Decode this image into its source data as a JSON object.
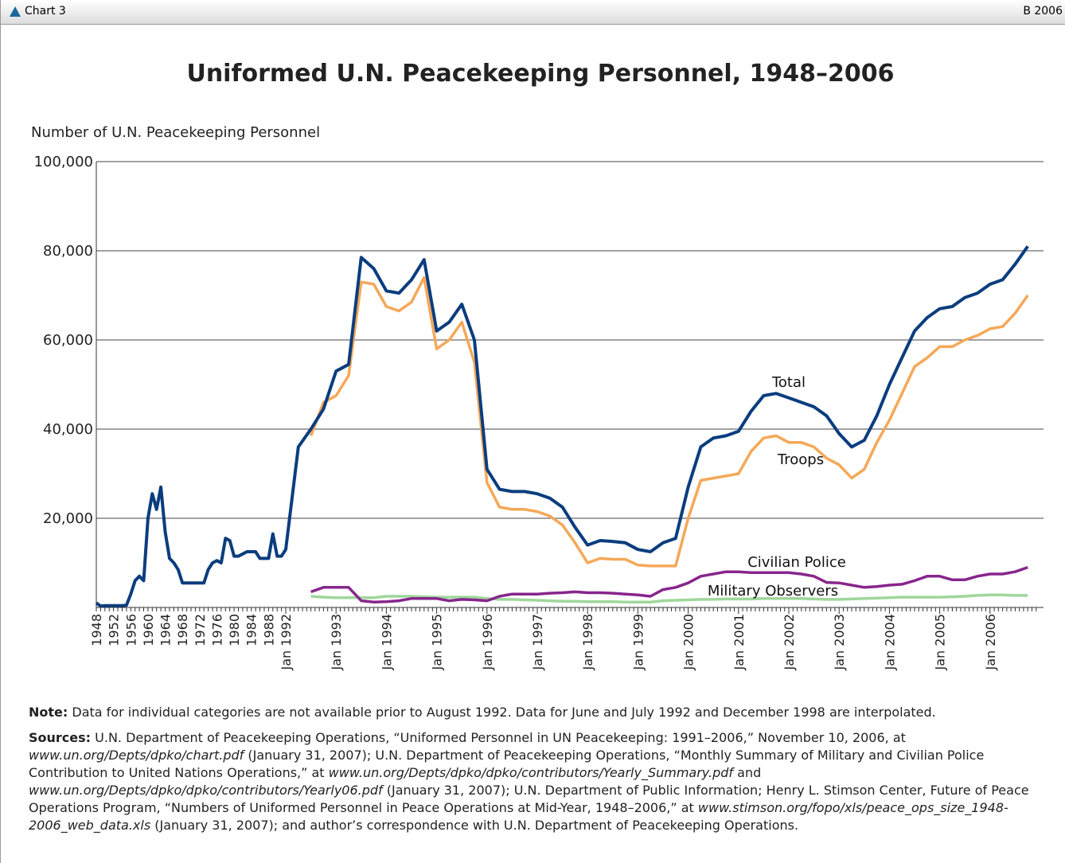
{
  "header": {
    "left": "Chart 3",
    "right": "B 2006"
  },
  "chart_data": {
    "type": "line",
    "title": "Uniformed U.N. Peacekeeping Personnel, 1948–2006",
    "y_label": "Number of U.N. Peacekeeping Personnel",
    "categories": [
      "1948",
      null,
      null,
      null,
      "1952",
      null,
      null,
      null,
      "1956",
      null,
      null,
      null,
      "1960",
      null,
      null,
      null,
      "1964",
      null,
      null,
      null,
      "1968",
      null,
      null,
      null,
      "1972",
      null,
      null,
      null,
      "1976",
      null,
      null,
      null,
      "1980",
      null,
      null,
      null,
      "1984",
      null,
      null,
      null,
      "1988",
      null,
      null,
      null,
      "Jan 1992",
      null,
      null,
      null,
      "Jan 1993",
      null,
      null,
      null,
      "Jan 1994",
      null,
      null,
      null,
      "Jan 1995",
      null,
      null,
      null,
      "Jan 1996",
      null,
      null,
      null,
      "Jan 1997",
      null,
      null,
      null,
      "Jan 1998",
      null,
      null,
      null,
      "Jan 1999",
      null,
      null,
      null,
      "Jan 2000",
      null,
      null,
      null,
      "Jan 2001",
      null,
      null,
      null,
      "Jan 2002",
      null,
      null,
      null,
      "Jan 2003",
      null,
      null,
      null,
      "Jan 2004",
      null,
      null,
      null,
      "Jan 2005",
      null,
      null,
      null,
      "Jan 2006",
      null,
      null,
      null
    ],
    "series": [
      {
        "name": "Total",
        "color": "#0b3d7e",
        "values": [
          1000,
          300,
          400,
          400,
          400,
          400,
          400,
          500,
          3000,
          6000,
          7000,
          6000,
          20000,
          25500,
          22000,
          27000,
          17000,
          11000,
          10000,
          8500,
          5500,
          5500,
          5500,
          5500,
          5500,
          5500,
          8500,
          10000,
          10500,
          10000,
          15500,
          15000,
          11500,
          11500,
          12000,
          12500,
          12500,
          12500,
          11000,
          11000,
          11000,
          16500,
          11500,
          11500,
          13000,
          36000,
          40000,
          44500,
          53000,
          54500,
          78500,
          76000,
          71000,
          70500,
          73500,
          78000,
          62000,
          64000,
          68000,
          60000,
          31000,
          26500,
          26000,
          26000,
          25500,
          24500,
          22500,
          18000,
          14000,
          15000,
          14800,
          14500,
          13000,
          12500,
          14500,
          15500,
          27000,
          36000,
          38000,
          38500,
          39500,
          44000,
          47500,
          48000,
          47000,
          46000,
          45000,
          43000,
          39000,
          36000,
          37500,
          43000,
          50000,
          56000,
          62000,
          65000,
          67000,
          67500,
          69500,
          70500,
          72500,
          73500,
          77000,
          81000
        ]
      },
      {
        "name": "Troops",
        "color": "#f5a858",
        "values": [
          null,
          null,
          null,
          null,
          null,
          null,
          null,
          null,
          null,
          null,
          null,
          null,
          null,
          null,
          null,
          null,
          null,
          null,
          null,
          null,
          null,
          null,
          null,
          null,
          null,
          null,
          null,
          null,
          null,
          null,
          null,
          null,
          null,
          null,
          null,
          null,
          null,
          null,
          null,
          null,
          null,
          null,
          null,
          null,
          null,
          null,
          38500,
          46000,
          47500,
          52000,
          73000,
          72500,
          67500,
          66500,
          68500,
          74000,
          58000,
          60000,
          64000,
          55000,
          28000,
          22500,
          22000,
          22000,
          21500,
          20500,
          18500,
          14500,
          10000,
          11000,
          10800,
          10800,
          9500,
          9300,
          9300,
          9300,
          20000,
          28500,
          29000,
          29500,
          30000,
          35000,
          38000,
          38500,
          37000,
          37000,
          36000,
          33500,
          32000,
          29000,
          31000,
          37000,
          42000,
          48000,
          54000,
          56000,
          58500,
          58500,
          60000,
          61000,
          62500,
          63000,
          66000,
          70000
        ]
      },
      {
        "name": "Civilian Police",
        "color": "#87268c",
        "values": [
          null,
          null,
          null,
          null,
          null,
          null,
          null,
          null,
          null,
          null,
          null,
          null,
          null,
          null,
          null,
          null,
          null,
          null,
          null,
          null,
          null,
          null,
          null,
          null,
          null,
          null,
          null,
          null,
          null,
          null,
          null,
          null,
          null,
          null,
          null,
          null,
          null,
          null,
          null,
          null,
          null,
          null,
          null,
          null,
          null,
          null,
          3500,
          4500,
          4500,
          4500,
          1500,
          1200,
          1300,
          1500,
          2000,
          2000,
          2000,
          1500,
          1800,
          1700,
          1500,
          2500,
          3000,
          3000,
          3000,
          3200,
          3300,
          3500,
          3300,
          3300,
          3200,
          3000,
          2800,
          2500,
          4000,
          4500,
          5500,
          7000,
          7500,
          8000,
          8000,
          7800,
          7800,
          7800,
          7800,
          7500,
          7000,
          5600,
          5500,
          5000,
          4500,
          4700,
          5000,
          5200,
          6000,
          7000,
          7000,
          6200,
          6200,
          7000,
          7500,
          7500,
          8000,
          9000
        ]
      },
      {
        "name": "Military Observers",
        "color": "#9fd79b",
        "values": [
          null,
          null,
          null,
          null,
          null,
          null,
          null,
          null,
          null,
          null,
          null,
          null,
          null,
          null,
          null,
          null,
          null,
          null,
          null,
          null,
          null,
          null,
          null,
          null,
          null,
          null,
          null,
          null,
          null,
          null,
          null,
          null,
          null,
          null,
          null,
          null,
          null,
          null,
          null,
          null,
          null,
          null,
          null,
          null,
          null,
          null,
          2500,
          2300,
          2200,
          2200,
          2200,
          2200,
          2500,
          2500,
          2500,
          2400,
          2300,
          2300,
          2300,
          2300,
          2000,
          1800,
          1800,
          1700,
          1600,
          1500,
          1400,
          1400,
          1300,
          1300,
          1300,
          1200,
          1200,
          1200,
          1500,
          1600,
          1700,
          1800,
          1800,
          1900,
          1900,
          1900,
          2000,
          2000,
          2000,
          2000,
          1900,
          1800,
          1800,
          1900,
          2000,
          2100,
          2200,
          2300,
          2300,
          2300,
          2300,
          2400,
          2500,
          2700,
          2800,
          2800,
          2700,
          2700
        ]
      }
    ],
    "ylim": [
      0,
      100000
    ],
    "yticks": [
      {
        "value": 20000,
        "label": "20,000"
      },
      {
        "value": 40000,
        "label": "40,000"
      },
      {
        "value": 60000,
        "label": "60,000"
      },
      {
        "value": 80000,
        "label": "80,000"
      },
      {
        "value": 100000,
        "label": "100,000"
      }
    ],
    "grid": true
  },
  "note": {
    "label": "Note:",
    "text": "Data for individual categories are not available prior to August 1992. Data for June and July 1992 and December 1998 are interpolated."
  },
  "sources": {
    "label": "Sources:",
    "parts": [
      {
        "text": "U.N. Department of Peacekeeping Operations, “Uniformed Personnel in UN Peacekeeping: 1991–2006,” November 10, 2006, at ",
        "italic": false
      },
      {
        "text": "www.un.org/Depts/dpko/chart.pdf",
        "italic": true
      },
      {
        "text": " (January 31, 2007); U.N. Department of Peacekeeping Operations, “Monthly Summary of Military and Civilian Police Contribution to United Nations Operations,” at ",
        "italic": false
      },
      {
        "text": "www.un.org/Depts/dpko/dpko/contributors/Yearly_Summary.pdf",
        "italic": true
      },
      {
        "text": " and ",
        "italic": false
      },
      {
        "text": "www.un.org/Depts/dpko/dpko/contributors/Yearly06.pdf",
        "italic": true
      },
      {
        "text": " (January 31, 2007); U.N. Department of Public Information; Henry L. Stimson Center, Future of Peace Operations Program, “Numbers of Uniformed Personnel in Peace Operations at Mid-Year, 1948–2006,” at ",
        "italic": false
      },
      {
        "text": "www.stimson.org/fopo/xls/peace_ops_size_1948-2006_web_data.xls",
        "italic": true
      },
      {
        "text": " (January 31, 2007); and author’s correspondence with U.N. Department of Peacekeeping Operations.",
        "italic": false
      }
    ]
  }
}
